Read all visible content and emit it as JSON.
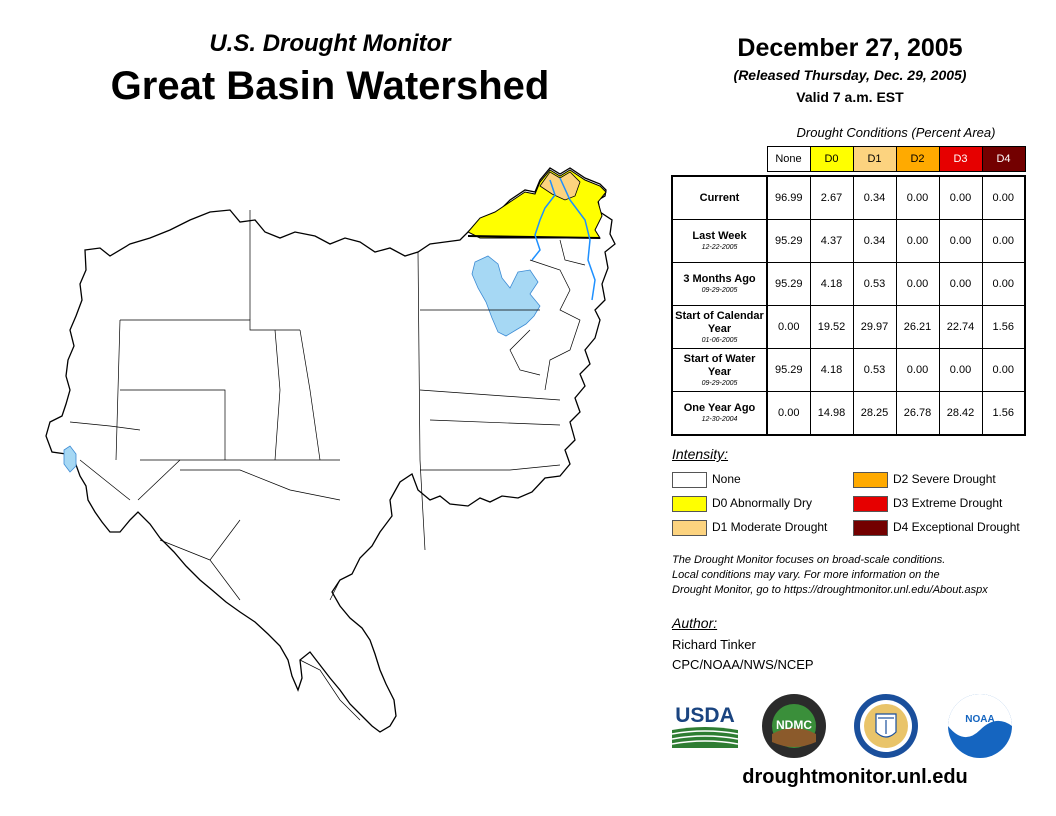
{
  "header": {
    "subtitle": "U.S. Drought Monitor",
    "title": "Great Basin Watershed",
    "date": "December 27, 2005",
    "released": "(Released Thursday, Dec. 29, 2005)",
    "valid": "Valid 7 a.m. EST"
  },
  "table": {
    "caption": "Drought Conditions (Percent Area)",
    "columns": [
      "None",
      "D0",
      "D1",
      "D2",
      "D3",
      "D4"
    ],
    "column_colors": [
      "#ffffff",
      "#ffff00",
      "#fcd37f",
      "#ffaa00",
      "#e60000",
      "#730000"
    ],
    "rows": [
      {
        "label": "Current",
        "date": "",
        "values": [
          "96.99",
          "2.67",
          "0.34",
          "0.00",
          "0.00",
          "0.00"
        ]
      },
      {
        "label": "Last Week",
        "date": "12-22-2005",
        "values": [
          "95.29",
          "4.37",
          "0.34",
          "0.00",
          "0.00",
          "0.00"
        ]
      },
      {
        "label": "3 Months Ago",
        "date": "09-29-2005",
        "values": [
          "95.29",
          "4.18",
          "0.53",
          "0.00",
          "0.00",
          "0.00"
        ]
      },
      {
        "label": "Start of Calendar Year",
        "date": "01-06-2005",
        "values": [
          "0.00",
          "19.52",
          "29.97",
          "26.21",
          "22.74",
          "1.56"
        ]
      },
      {
        "label": "Start of Water Year",
        "date": "09-29-2005",
        "values": [
          "95.29",
          "4.18",
          "0.53",
          "0.00",
          "0.00",
          "0.00"
        ]
      },
      {
        "label": "One Year Ago",
        "date": "12-30-2004",
        "values": [
          "0.00",
          "14.98",
          "28.25",
          "26.78",
          "28.42",
          "1.56"
        ]
      }
    ]
  },
  "legend": {
    "title": "Intensity:",
    "items": [
      {
        "label": "None",
        "color": "#ffffff"
      },
      {
        "label": "D0 Abnormally Dry",
        "color": "#ffff00"
      },
      {
        "label": "D1 Moderate Drought",
        "color": "#fcd37f"
      },
      {
        "label": "D2 Severe Drought",
        "color": "#ffaa00"
      },
      {
        "label": "D3 Extreme Drought",
        "color": "#e60000"
      },
      {
        "label": "D4 Exceptional Drought",
        "color": "#730000"
      }
    ]
  },
  "note": {
    "line1": "The Drought Monitor focuses on broad-scale conditions.",
    "line2": "Local conditions may vary. For more information on the",
    "line3": "Drought Monitor, go to https://droughtmonitor.unl.edu/About.aspx"
  },
  "author": {
    "label": "Author:",
    "name": "Richard Tinker",
    "org": "CPC/NOAA/NWS/NCEP"
  },
  "logos": {
    "usda": "USDA",
    "ndmc": "NDMC",
    "noaa": "NOAA"
  },
  "website": "droughtmonitor.unl.edu",
  "map_colors": {
    "d0": "#ffff00",
    "d1": "#fcd37f",
    "water": "#a6d8f4",
    "river": "#1e90ff"
  }
}
